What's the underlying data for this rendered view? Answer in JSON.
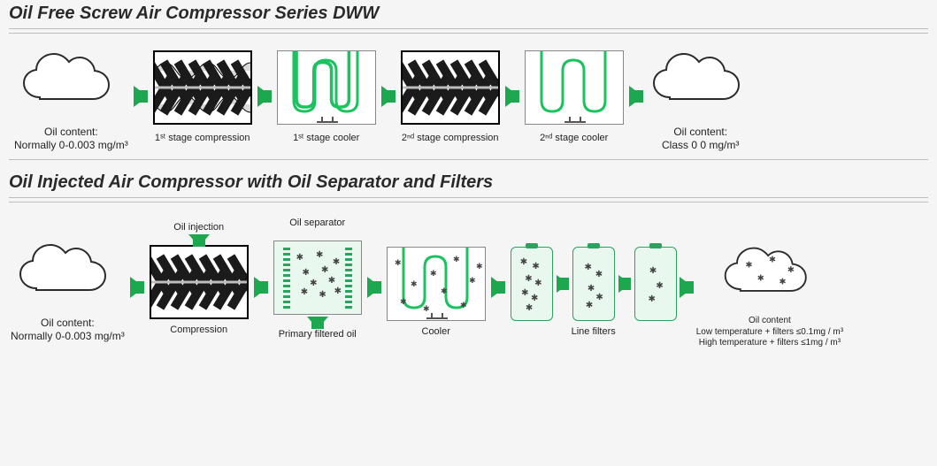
{
  "colors": {
    "arrow_green": "#1da84f",
    "coil_green": "#1cc25f",
    "box_border": "#7a7a7a",
    "text": "#222222",
    "bg": "#f5f5f5",
    "hr": "#bdbdbd",
    "screw_dark": "#1b1b1b",
    "screw_light": "#d9d9d9",
    "pale_green": "#e8f8ee"
  },
  "typography": {
    "title_fontsize_pt": 16,
    "label_fontsize_pt": 10
  },
  "section1": {
    "title": "Oil Free Screw Air Compressor Series DWW",
    "stages": {
      "inlet": {
        "line1": "Oil content:",
        "line2": "Normally 0-0.003 mg/m³"
      },
      "s1": {
        "label": "1ˢᵗ stage compression",
        "type": "screw"
      },
      "s2": {
        "label": "1ˢᵗ stage cooler",
        "type": "cooler"
      },
      "s3": {
        "label": "2ⁿᵈ stage compression",
        "type": "screw"
      },
      "s4": {
        "label": "2ⁿᵈ stage cooler",
        "type": "cooler"
      },
      "outlet": {
        "line1": "Oil content:",
        "line2": "Class 0  0 mg/m³"
      }
    }
  },
  "section2": {
    "title": "Oil Injected Air Compressor with Oil Separator and Filters",
    "top_labels": {
      "oil_injection": "Oil injection",
      "oil_separator": "Oil separator"
    },
    "stages": {
      "inlet": {
        "line1": "Oil content:",
        "line2": "Normally 0-0.003 mg/m³"
      },
      "comp": {
        "label": "Compression",
        "type": "screw"
      },
      "sep": {
        "label": "Primary filtered oil",
        "type": "separator"
      },
      "cooler": {
        "label": "Cooler",
        "type": "cooler_particles"
      },
      "filters": {
        "label": "Line filters",
        "type": "filters3"
      },
      "outlet": {
        "line1": "Oil content",
        "line2": "Low temperature + filters  ≤0.1mg / m³",
        "line3": "High temperature + filters ≤1mg / m³"
      }
    }
  }
}
